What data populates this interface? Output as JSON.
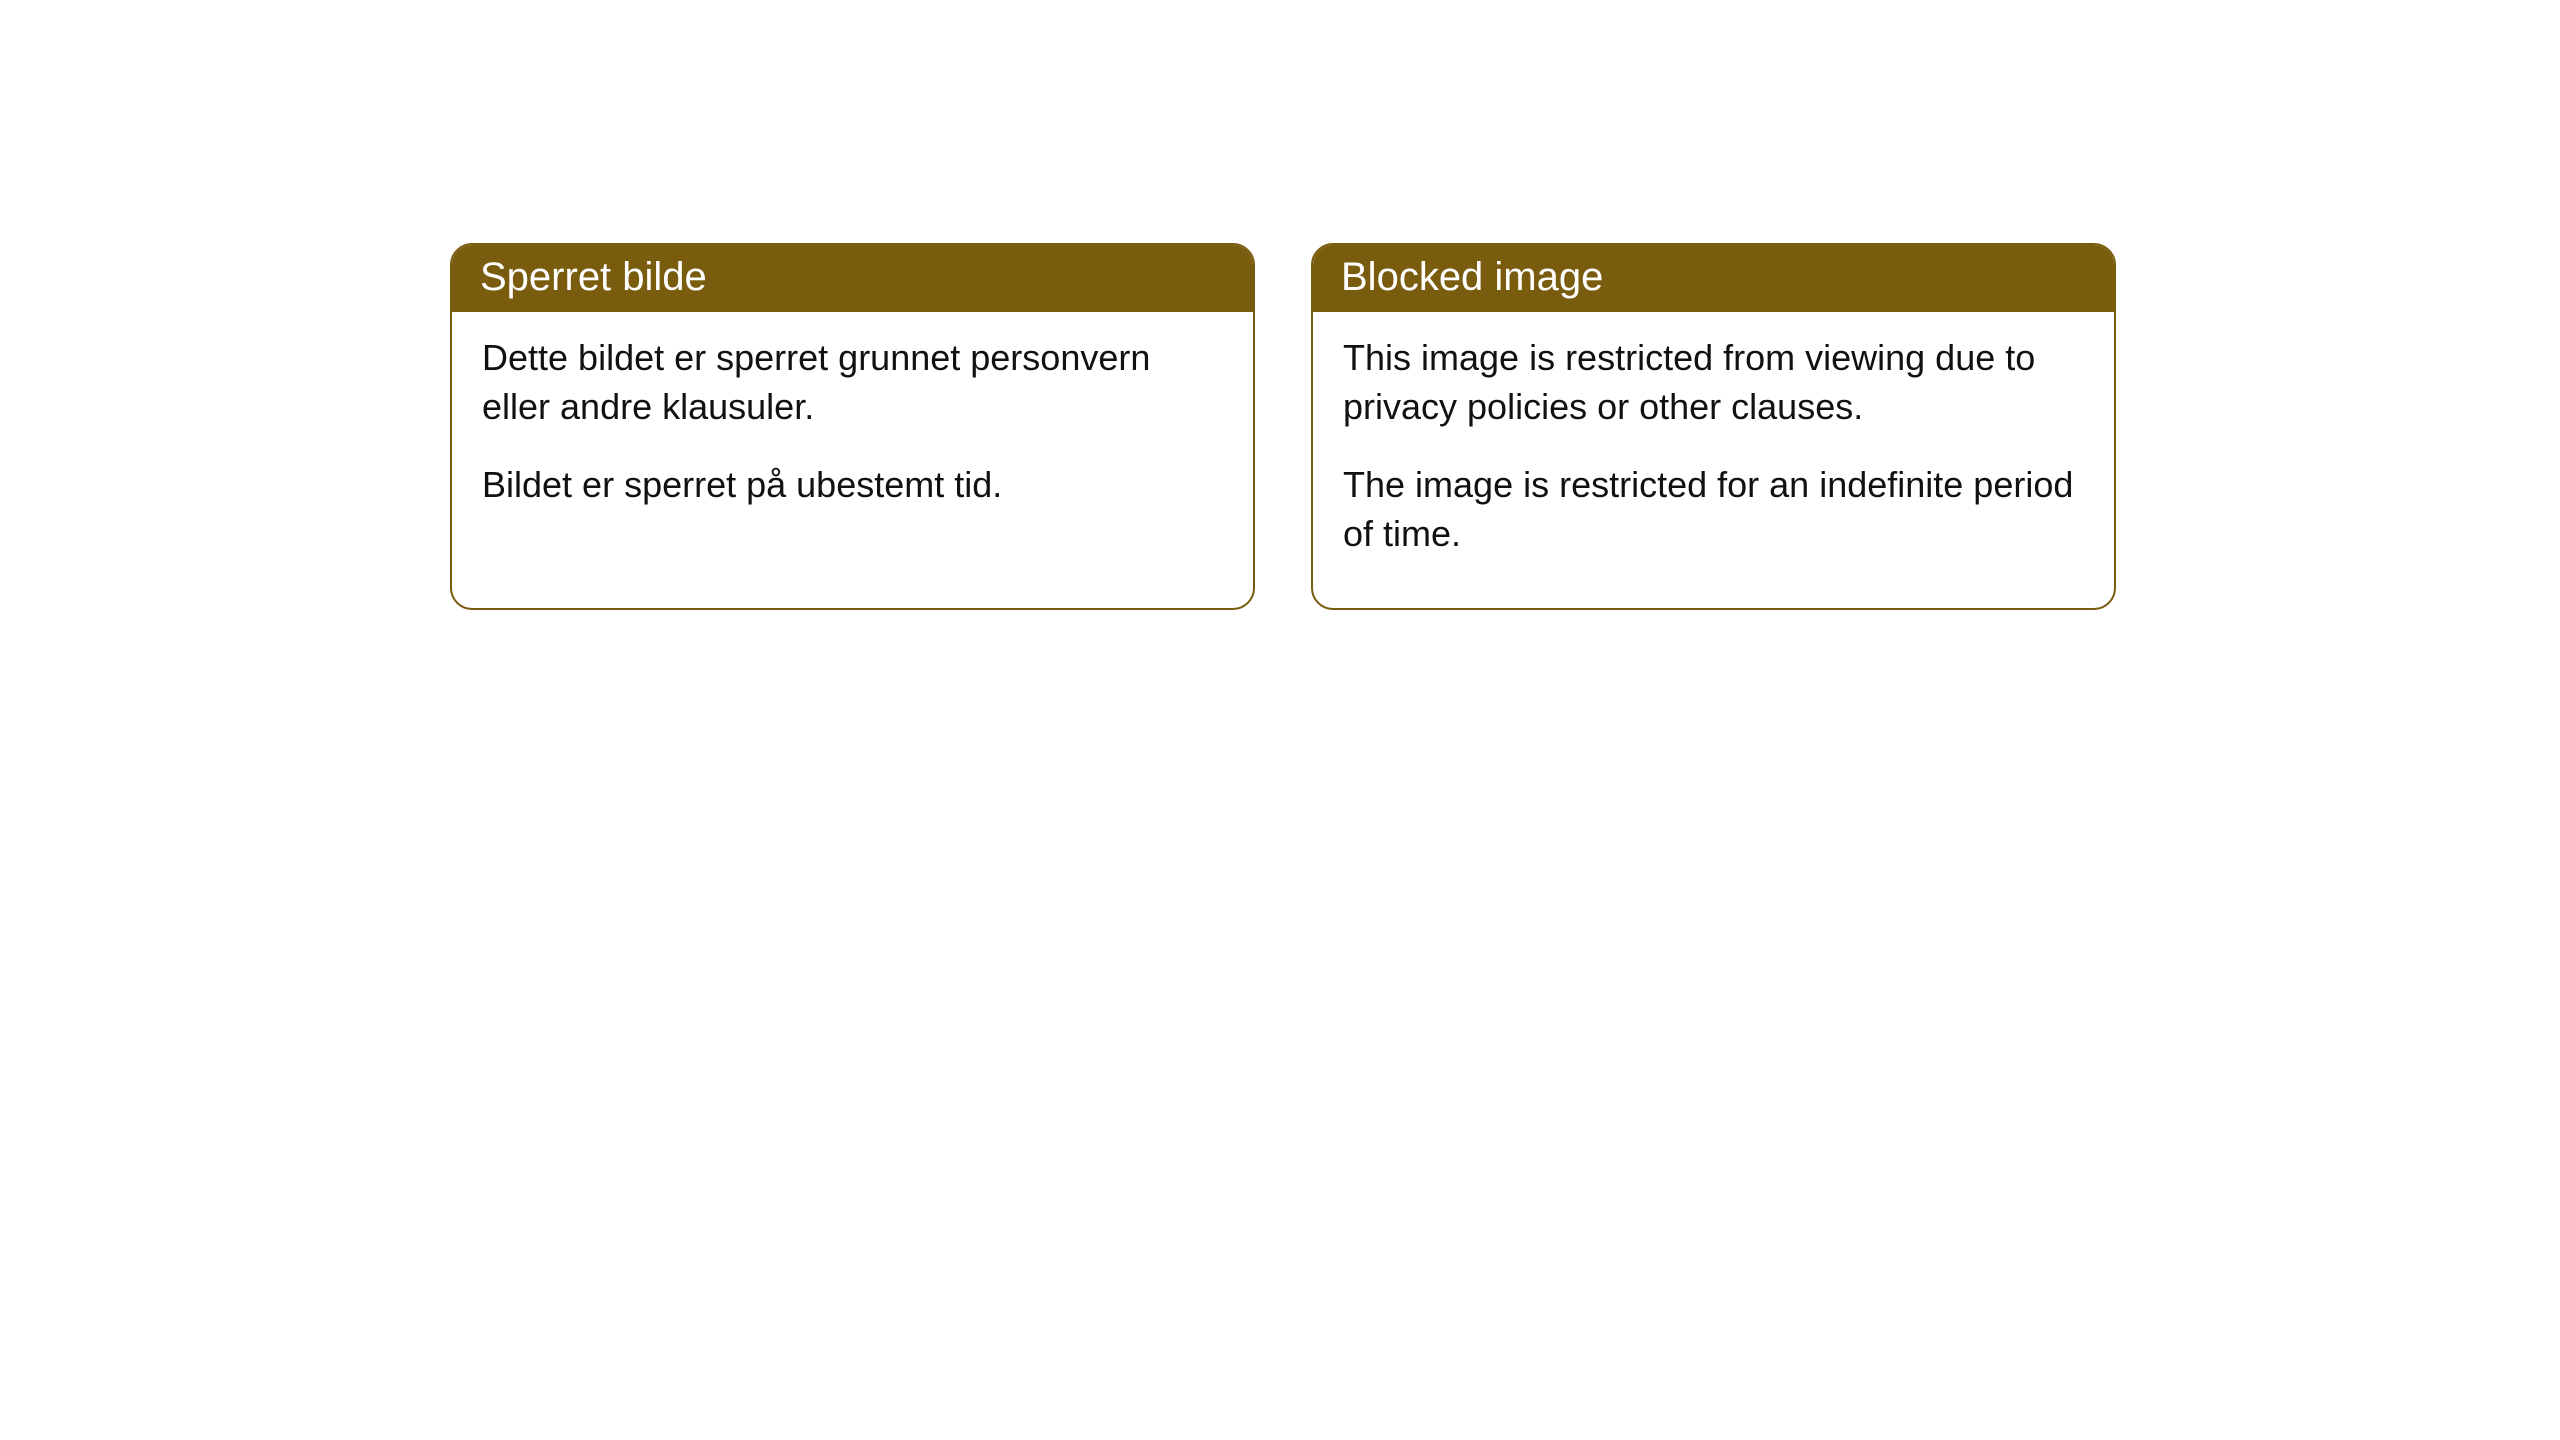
{
  "cards": [
    {
      "title": "Sperret bilde",
      "paragraph1": "Dette bildet er sperret grunnet personvern eller andre klausuler.",
      "paragraph2": "Bildet er sperret på ubestemt tid."
    },
    {
      "title": "Blocked image",
      "paragraph1": "This image is restricted from viewing due to privacy policies or other clauses.",
      "paragraph2": "The image is restricted for an indefinite period of time."
    }
  ],
  "styling": {
    "header_background_color": "#7a5c0f",
    "header_text_color": "#ffffff",
    "card_border_color": "#7a5c0f",
    "card_background_color": "#ffffff",
    "body_text_color": "#111111",
    "page_background_color": "#ffffff",
    "border_radius": 22,
    "title_fontsize": 40,
    "body_fontsize": 36
  }
}
